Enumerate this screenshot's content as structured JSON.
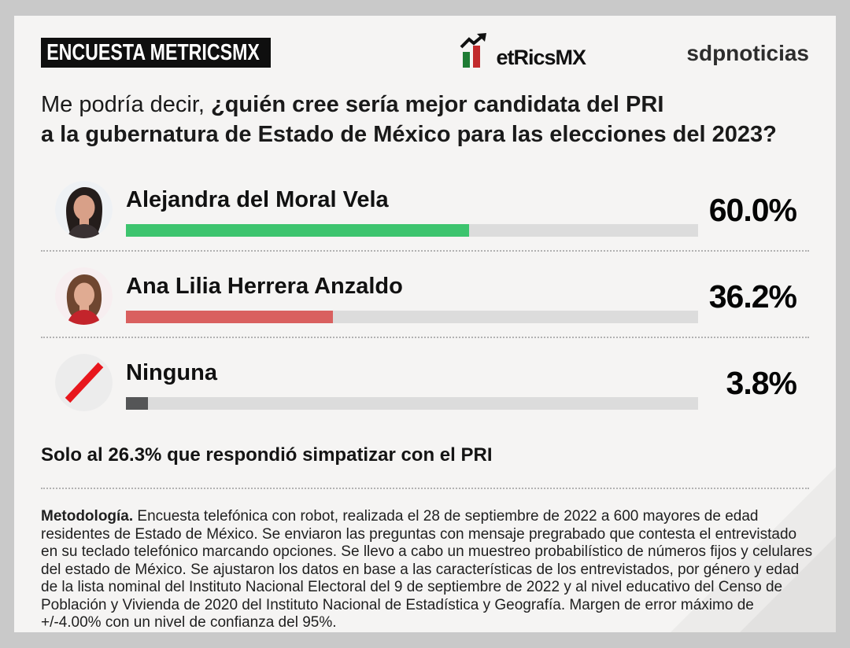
{
  "frame": {
    "outer_bg": "#c9c9c9",
    "card_bg": "#f5f4f3"
  },
  "header": {
    "title": "ENCUESTA METRICSMX",
    "brand_logo": {
      "brand": "MetricsMX",
      "text": "etRicsMX",
      "green": "#1e7c34",
      "red": "#c22a2c"
    },
    "partner_logo": "sdpnoticias"
  },
  "question": {
    "prefix": "Me podría decir, ",
    "bold_line1": "¿quién cree sería mejor candidata del PRI",
    "bold_line2": "a la gubernatura de Estado de México para las elecciones del 2023?"
  },
  "rows": [
    {
      "name": "Alejandra del Moral Vela",
      "pct_label": "60.0%",
      "value": 60.0,
      "color": "#3dc46e",
      "avatar": "photo-alejandra-del-moral"
    },
    {
      "name": "Ana Lilia Herrera Anzaldo",
      "pct_label": "36.2%",
      "value": 36.2,
      "color": "#d9605f",
      "avatar": "photo-ana-lilia-herrera"
    },
    {
      "name": "Ninguna",
      "pct_label": "3.8%",
      "value": 3.8,
      "color": "#555657",
      "avatar": "none-slash-icon"
    }
  ],
  "filter_note": "Solo al 26.3% que respondió simpatizar con el PRI",
  "methodology": {
    "label": "Metodología.",
    "text": " Encuesta telefónica con robot, realizada el 28 de septiembre de 2022 a 600 mayores de edad residentes de Estado de México. Se enviaron las preguntas con mensaje pregrabado que contesta el entrevistado en su teclado telefónico marcando opciones. Se llevo a cabo un muestreo probabilístico de números fijos y celulares del estado de México. Se ajustaron los datos en base a las características de los entrevistados, por género y edad de la lista nominal del Instituto Nacional Electoral del 9 de septiembre de 2022 y al nivel educativo del Censo de Población y Vivienda de 2020 del Instituto Nacional de Estadística y Geografía. Margen de error máximo de +/-4.00% con un nivel de confianza del 95%."
  },
  "chart_data": {
    "type": "bar",
    "orientation": "horizontal",
    "title": "Me podría decir, ¿quién cree sería mejor candidata del PRI a la gubernatura de Estado de México para las elecciones del 2023?",
    "categories": [
      "Alejandra del Moral Vela",
      "Ana Lilia Herrera Anzaldo",
      "Ninguna"
    ],
    "values": [
      60.0,
      36.2,
      3.8
    ],
    "value_labels": [
      "60.0%",
      "36.2%",
      "3.8%"
    ],
    "colors": [
      "#3dc46e",
      "#d9605f",
      "#555657"
    ],
    "xlim": [
      0,
      100
    ],
    "grid": false,
    "legend": "none",
    "note": "Solo al 26.3% que respondió simpatizar con el PRI",
    "source": "ENCUESTA METRICSMX / sdpnoticias"
  }
}
